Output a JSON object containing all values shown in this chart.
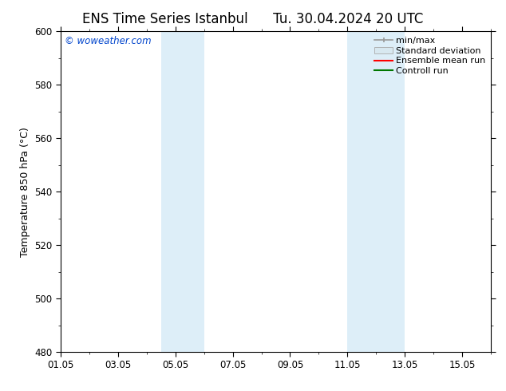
{
  "title_left": "ENS Time Series Istanbul",
  "title_right": "Tu. 30.04.2024 20 UTC",
  "ylabel": "Temperature 850 hPa (°C)",
  "ylim": [
    480,
    600
  ],
  "yticks": [
    480,
    500,
    520,
    540,
    560,
    580,
    600
  ],
  "xlim": [
    0,
    15
  ],
  "xtick_labels": [
    "01.05",
    "03.05",
    "05.05",
    "07.05",
    "09.05",
    "11.05",
    "13.05",
    "15.05"
  ],
  "xtick_positions": [
    0,
    2,
    4,
    6,
    8,
    10,
    12,
    14
  ],
  "shaded_bands": [
    {
      "x_start": 3.5,
      "x_end": 5.0,
      "color": "#ddeef8"
    },
    {
      "x_start": 10.0,
      "x_end": 12.0,
      "color": "#ddeef8"
    }
  ],
  "watermark": "© woweather.com",
  "watermark_color": "#0044cc",
  "background_color": "#ffffff",
  "plot_bg_color": "#ffffff",
  "legend_labels": [
    "min/max",
    "Standard deviation",
    "Ensemble mean run",
    "Controll run"
  ],
  "legend_colors": [
    "#999999",
    "#cccccc",
    "#ff0000",
    "#007700"
  ],
  "title_fontsize": 12,
  "label_fontsize": 9,
  "tick_fontsize": 8.5,
  "legend_fontsize": 8,
  "watermark_fontsize": 8.5,
  "figsize": [
    6.34,
    4.9
  ],
  "dpi": 100
}
